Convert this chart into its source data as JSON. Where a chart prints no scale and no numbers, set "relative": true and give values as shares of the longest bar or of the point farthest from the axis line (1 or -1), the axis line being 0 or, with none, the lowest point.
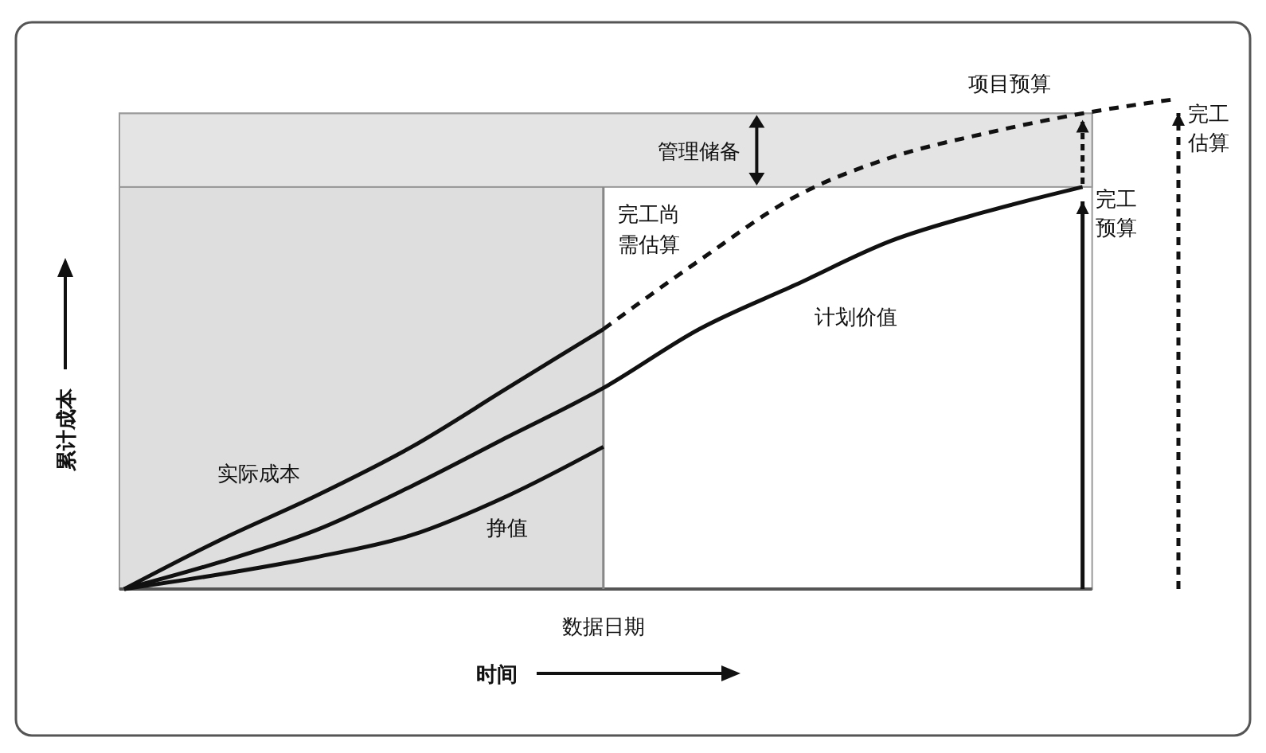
{
  "chart_data": {
    "type": "line",
    "relative": true,
    "xlabel": "时间",
    "ylabel": "累计成本",
    "categories": [
      null,
      null,
      null,
      null,
      null,
      null,
      null,
      null,
      null,
      null,
      null,
      null
    ],
    "series": [
      {
        "name": "计划价值",
        "color": "#111111",
        "values": [
          0,
          0.055,
          0.12,
          0.21,
          0.31,
          0.41,
          0.53,
          0.62,
          0.71,
          0.77,
          0.82,
          null
        ]
      },
      {
        "name": "实际成本",
        "color": "#111111",
        "values": [
          0,
          0.1,
          0.19,
          0.29,
          0.41,
          0.53,
          null,
          null,
          null,
          null,
          null,
          null
        ]
      },
      {
        "name": "挣值",
        "color": "#111111",
        "values": [
          0,
          0.03,
          0.065,
          0.11,
          0.19,
          0.29,
          null,
          null,
          null,
          null,
          null,
          null
        ]
      },
      {
        "name": "完工尚需估算",
        "color": "#111111",
        "line_style": "dashed",
        "values": [
          null,
          null,
          null,
          null,
          null,
          0.53,
          0.67,
          0.8,
          0.88,
          0.93,
          0.97,
          1.0
        ]
      }
    ],
    "bands": [
      {
        "axis": "y",
        "from": 0.82,
        "to": 0.97,
        "label": "管理储备",
        "color": "#e4e4e4"
      }
    ],
    "annotations": [
      "数据日期",
      "完工预算",
      "完工估算",
      "项目预算"
    ],
    "marker": "none"
  }
}
